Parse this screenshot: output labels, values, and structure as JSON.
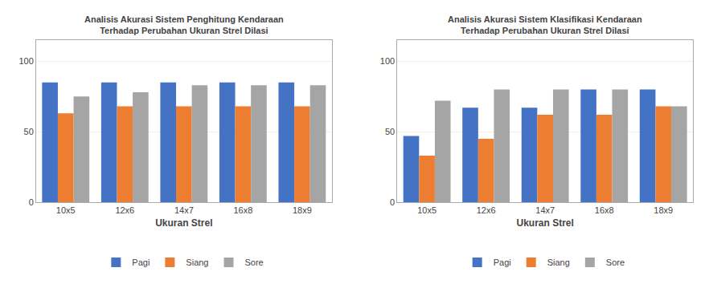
{
  "chart_data": [
    {
      "type": "bar",
      "title": "Analisis Akurasi Sistem Penghitung Kendaraan\nTerhadap Perubahan Ukuran Strel Dilasi",
      "xlabel": "Ukuran Strel",
      "categories": [
        "10x5",
        "12x6",
        "14x7",
        "16x8",
        "18x9"
      ],
      "series": [
        {
          "name": "Pagi",
          "color": "#4472C4",
          "values": [
            85,
            85,
            85,
            85,
            85
          ]
        },
        {
          "name": "Siang",
          "color": "#ED7D31",
          "values": [
            63,
            68,
            68,
            68,
            68
          ]
        },
        {
          "name": "Sore",
          "color": "#A5A5A5",
          "values": [
            75,
            78,
            83,
            83,
            83
          ]
        }
      ],
      "ylim": [
        0,
        115
      ],
      "yticks": [
        0,
        50,
        100
      ],
      "grid": true,
      "legend": "bottom"
    },
    {
      "type": "bar",
      "title": "Analisis Akurasi Sistem Klasifikasi Kendaraan\nTerhadap Perubahan Ukuran Strel Dilasi",
      "xlabel": "Ukuran Strel",
      "categories": [
        "10x5",
        "12x6",
        "14x7",
        "16x8",
        "18x9"
      ],
      "series": [
        {
          "name": "Pagi",
          "color": "#4472C4",
          "values": [
            47,
            67,
            67,
            80,
            80
          ]
        },
        {
          "name": "Siang",
          "color": "#ED7D31",
          "values": [
            33,
            45,
            62,
            62,
            68
          ]
        },
        {
          "name": "Sore",
          "color": "#A5A5A5",
          "values": [
            72,
            80,
            80,
            80,
            68
          ]
        }
      ],
      "ylim": [
        0,
        115
      ],
      "yticks": [
        0,
        50,
        100
      ],
      "grid": true,
      "legend": "bottom"
    }
  ]
}
